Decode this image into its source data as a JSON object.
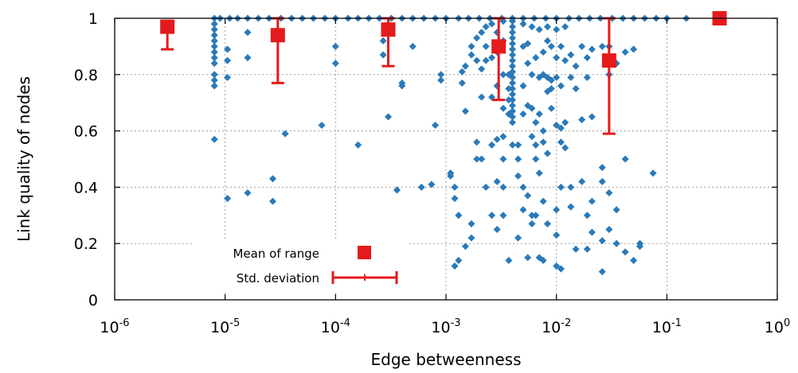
{
  "colors": {
    "scatter": "#2a7ab9",
    "mean": "#e41a1c",
    "grid": "#a0a0a0",
    "axis": "#000000"
  },
  "chart_data": {
    "type": "scatter",
    "title": "",
    "xlabel": "Edge betweenness",
    "ylabel": "Link quality of nodes",
    "xscale": "log",
    "xlim": [
      1e-06,
      1
    ],
    "ylim": [
      0,
      1
    ],
    "x_ticks": [
      {
        "base": "10",
        "exp": "-6",
        "value": 1e-06
      },
      {
        "base": "10",
        "exp": "-5",
        "value": 1e-05
      },
      {
        "base": "10",
        "exp": "-4",
        "value": 0.0001
      },
      {
        "base": "10",
        "exp": "-3",
        "value": 0.001
      },
      {
        "base": "10",
        "exp": "-2",
        "value": 0.01
      },
      {
        "base": "10",
        "exp": "-1",
        "value": 0.1
      },
      {
        "base": "10",
        "exp": "0",
        "value": 1
      }
    ],
    "y_ticks": [
      {
        "label": "0",
        "value": 0
      },
      {
        "label": "0.2",
        "value": 0.2
      },
      {
        "label": "0.4",
        "value": 0.4
      },
      {
        "label": "0.6",
        "value": 0.6
      },
      {
        "label": "0.8",
        "value": 0.8
      },
      {
        "label": "1",
        "value": 1
      }
    ],
    "grid": true,
    "legend_position": "bottom-left",
    "legend": [
      {
        "label": "Mean of range",
        "marker": "square"
      },
      {
        "label": "Std. deviation",
        "marker": "errorbar"
      }
    ],
    "series": [
      {
        "role": "scatter",
        "points": [
          [
            8e-06,
            1
          ],
          [
            9e-06,
            1
          ],
          [
            1.1e-05,
            1
          ],
          [
            1.3e-05,
            1
          ],
          [
            1.6e-05,
            1
          ],
          [
            2e-05,
            1
          ],
          [
            2.5e-05,
            1
          ],
          [
            3.2e-05,
            1
          ],
          [
            4e-05,
            1
          ],
          [
            5e-05,
            1
          ],
          [
            6.3e-05,
            1
          ],
          [
            8e-05,
            1
          ],
          [
            0.0001,
            1
          ],
          [
            0.00013,
            1
          ],
          [
            0.00016,
            1
          ],
          [
            0.0002,
            1
          ],
          [
            0.00025,
            1
          ],
          [
            0.00032,
            1
          ],
          [
            0.0004,
            1
          ],
          [
            0.0005,
            1
          ],
          [
            0.00063,
            1
          ],
          [
            0.0008,
            1
          ],
          [
            0.001,
            1
          ],
          [
            0.0013,
            1
          ],
          [
            0.0016,
            1
          ],
          [
            0.002,
            1
          ],
          [
            0.0025,
            1
          ],
          [
            0.0032,
            1
          ],
          [
            0.004,
            1
          ],
          [
            0.005,
            1
          ],
          [
            0.0063,
            1
          ],
          [
            0.008,
            1
          ],
          [
            0.01,
            1
          ],
          [
            0.013,
            1
          ],
          [
            0.016,
            1
          ],
          [
            0.02,
            1
          ],
          [
            0.025,
            1
          ],
          [
            0.032,
            1
          ],
          [
            0.04,
            1
          ],
          [
            0.05,
            1
          ],
          [
            0.063,
            1
          ],
          [
            0.08,
            1
          ],
          [
            0.1,
            1
          ],
          [
            0.15,
            1
          ],
          [
            8e-06,
            0.98
          ],
          [
            8e-06,
            0.96
          ],
          [
            8e-06,
            0.94
          ],
          [
            8e-06,
            0.92
          ],
          [
            8e-06,
            0.9
          ],
          [
            8e-06,
            0.88
          ],
          [
            8e-06,
            0.86
          ],
          [
            8e-06,
            0.84
          ],
          [
            8e-06,
            0.8
          ],
          [
            8e-06,
            0.78
          ],
          [
            8e-06,
            0.76
          ],
          [
            8e-06,
            0.57
          ],
          [
            1.05e-05,
            0.89
          ],
          [
            1.05e-05,
            0.85
          ],
          [
            1.05e-05,
            0.79
          ],
          [
            1.05e-05,
            0.36
          ],
          [
            1.6e-05,
            0.95
          ],
          [
            1.6e-05,
            0.86
          ],
          [
            1.6e-05,
            0.38
          ],
          [
            2.7e-05,
            0.43
          ],
          [
            2.7e-05,
            0.35
          ],
          [
            3.5e-05,
            0.59
          ],
          [
            4.2e-05,
            0.19
          ],
          [
            7.5e-05,
            0.62
          ],
          [
            0.0001,
            0.9
          ],
          [
            0.0001,
            0.84
          ],
          [
            0.00016,
            0.55
          ],
          [
            0.00027,
            0.92
          ],
          [
            0.00027,
            0.87
          ],
          [
            0.0003,
            0.65
          ],
          [
            0.00036,
            0.39
          ],
          [
            0.0004,
            0.77
          ],
          [
            0.0004,
            0.76
          ],
          [
            0.0005,
            0.9
          ],
          [
            0.0006,
            0.4
          ],
          [
            0.00074,
            0.41
          ],
          [
            0.0008,
            0.62
          ],
          [
            0.0009,
            0.8
          ],
          [
            0.0009,
            0.78
          ],
          [
            0.0011,
            0.45
          ],
          [
            0.0011,
            0.44
          ],
          [
            0.0012,
            0.4
          ],
          [
            0.0012,
            0.36
          ],
          [
            0.0012,
            0.12
          ],
          [
            0.0013,
            0.3
          ],
          [
            0.0013,
            0.14
          ],
          [
            0.0014,
            0.81
          ],
          [
            0.0014,
            0.77
          ],
          [
            0.0015,
            0.83
          ],
          [
            0.0015,
            0.67
          ],
          [
            0.0015,
            0.19
          ],
          [
            0.0017,
            0.9
          ],
          [
            0.0017,
            0.87
          ],
          [
            0.0017,
            0.22
          ],
          [
            0.0017,
            0.27
          ],
          [
            0.0019,
            0.93
          ],
          [
            0.0019,
            0.85
          ],
          [
            0.0019,
            0.5
          ],
          [
            0.0019,
            0.56
          ],
          [
            0.0021,
            0.95
          ],
          [
            0.0021,
            0.82
          ],
          [
            0.0021,
            0.72
          ],
          [
            0.0021,
            0.5
          ],
          [
            0.0023,
            0.97
          ],
          [
            0.0023,
            0.9
          ],
          [
            0.0023,
            0.85
          ],
          [
            0.0023,
            0.4
          ],
          [
            0.0026,
            0.98
          ],
          [
            0.0026,
            0.86
          ],
          [
            0.0026,
            0.72
          ],
          [
            0.0026,
            0.55
          ],
          [
            0.0026,
            0.3
          ],
          [
            0.0029,
            0.95
          ],
          [
            0.0029,
            0.88
          ],
          [
            0.0029,
            0.76
          ],
          [
            0.0029,
            0.57
          ],
          [
            0.0029,
            0.42
          ],
          [
            0.0029,
            0.25
          ],
          [
            0.0033,
            0.99
          ],
          [
            0.0033,
            0.92
          ],
          [
            0.0033,
            0.8
          ],
          [
            0.0033,
            0.68
          ],
          [
            0.0033,
            0.58
          ],
          [
            0.0033,
            0.5
          ],
          [
            0.0033,
            0.4
          ],
          [
            0.0033,
            0.3
          ],
          [
            0.0037,
            0.8
          ],
          [
            0.0037,
            0.75
          ],
          [
            0.0037,
            0.71
          ],
          [
            0.0037,
            0.66
          ],
          [
            0.0037,
            0.14
          ],
          [
            0.004,
            0.99
          ],
          [
            0.004,
            0.97
          ],
          [
            0.004,
            0.95
          ],
          [
            0.004,
            0.93
          ],
          [
            0.004,
            0.91
          ],
          [
            0.004,
            0.89
          ],
          [
            0.004,
            0.87
          ],
          [
            0.004,
            0.85
          ],
          [
            0.004,
            0.83
          ],
          [
            0.004,
            0.81
          ],
          [
            0.004,
            0.79
          ],
          [
            0.004,
            0.77
          ],
          [
            0.004,
            0.75
          ],
          [
            0.004,
            0.73
          ],
          [
            0.004,
            0.71
          ],
          [
            0.004,
            0.69
          ],
          [
            0.004,
            0.67
          ],
          [
            0.004,
            0.65
          ],
          [
            0.004,
            0.63
          ],
          [
            0.004,
            0.55
          ],
          [
            0.0045,
            0.55
          ],
          [
            0.0045,
            0.5
          ],
          [
            0.0045,
            0.44
          ],
          [
            0.0045,
            0.22
          ],
          [
            0.005,
            0.98
          ],
          [
            0.005,
            0.9
          ],
          [
            0.005,
            0.76
          ],
          [
            0.005,
            0.66
          ],
          [
            0.005,
            0.4
          ],
          [
            0.005,
            0.32
          ],
          [
            0.0055,
            0.91
          ],
          [
            0.0055,
            0.84
          ],
          [
            0.0055,
            0.69
          ],
          [
            0.0055,
            0.37
          ],
          [
            0.0055,
            0.15
          ],
          [
            0.006,
            0.97
          ],
          [
            0.006,
            0.8
          ],
          [
            0.006,
            0.68
          ],
          [
            0.006,
            0.58
          ],
          [
            0.006,
            0.3
          ],
          [
            0.006,
            0.27
          ],
          [
            0.0065,
            0.86
          ],
          [
            0.0065,
            0.63
          ],
          [
            0.0065,
            0.55
          ],
          [
            0.0065,
            0.5
          ],
          [
            0.0065,
            0.3
          ],
          [
            0.007,
            0.96
          ],
          [
            0.007,
            0.79
          ],
          [
            0.007,
            0.66
          ],
          [
            0.007,
            0.45
          ],
          [
            0.007,
            0.15
          ],
          [
            0.0076,
            0.88
          ],
          [
            0.0076,
            0.8
          ],
          [
            0.0076,
            0.6
          ],
          [
            0.0076,
            0.56
          ],
          [
            0.0076,
            0.35
          ],
          [
            0.0076,
            0.14
          ],
          [
            0.0083,
            0.97
          ],
          [
            0.0083,
            0.92
          ],
          [
            0.0083,
            0.79
          ],
          [
            0.0083,
            0.74
          ],
          [
            0.0083,
            0.52
          ],
          [
            0.0083,
            0.27
          ],
          [
            0.009,
            0.9
          ],
          [
            0.009,
            0.78
          ],
          [
            0.009,
            0.75
          ],
          [
            0.009,
            0.68
          ],
          [
            0.01,
            0.96
          ],
          [
            0.01,
            0.86
          ],
          [
            0.01,
            0.79
          ],
          [
            0.01,
            0.62
          ],
          [
            0.01,
            0.32
          ],
          [
            0.01,
            0.23
          ],
          [
            0.01,
            0.12
          ],
          [
            0.011,
            0.9
          ],
          [
            0.011,
            0.76
          ],
          [
            0.011,
            0.61
          ],
          [
            0.011,
            0.56
          ],
          [
            0.011,
            0.4
          ],
          [
            0.011,
            0.11
          ],
          [
            0.012,
            0.97
          ],
          [
            0.012,
            0.85
          ],
          [
            0.012,
            0.63
          ],
          [
            0.012,
            0.54
          ],
          [
            0.0135,
            0.87
          ],
          [
            0.0135,
            0.79
          ],
          [
            0.0135,
            0.4
          ],
          [
            0.0135,
            0.33
          ],
          [
            0.015,
            0.83
          ],
          [
            0.015,
            0.75
          ],
          [
            0.015,
            0.18
          ],
          [
            0.017,
            0.9
          ],
          [
            0.017,
            0.64
          ],
          [
            0.017,
            0.42
          ],
          [
            0.019,
            0.86
          ],
          [
            0.019,
            0.79
          ],
          [
            0.019,
            0.3
          ],
          [
            0.019,
            0.18
          ],
          [
            0.021,
            0.89
          ],
          [
            0.021,
            0.65
          ],
          [
            0.021,
            0.35
          ],
          [
            0.021,
            0.24
          ],
          [
            0.026,
            0.9
          ],
          [
            0.026,
            0.47
          ],
          [
            0.026,
            0.42
          ],
          [
            0.026,
            0.21
          ],
          [
            0.026,
            0.1
          ],
          [
            0.03,
            0.9
          ],
          [
            0.03,
            0.8
          ],
          [
            0.03,
            0.38
          ],
          [
            0.03,
            0.25
          ],
          [
            0.035,
            0.84
          ],
          [
            0.035,
            0.32
          ],
          [
            0.035,
            0.2
          ],
          [
            0.042,
            0.88
          ],
          [
            0.042,
            0.5
          ],
          [
            0.042,
            0.17
          ],
          [
            0.05,
            0.89
          ],
          [
            0.05,
            0.14
          ],
          [
            0.057,
            0.19
          ],
          [
            0.057,
            0.2
          ],
          [
            0.075,
            0.45
          ]
        ]
      },
      {
        "role": "mean",
        "points": [
          {
            "x": 3e-06,
            "y": 0.97,
            "sd_low": 0.89,
            "sd_high": 0.99
          },
          {
            "x": 3e-05,
            "y": 0.94,
            "sd_low": 0.77,
            "sd_high": 1.0
          },
          {
            "x": 0.0003,
            "y": 0.96,
            "sd_low": 0.83,
            "sd_high": 1.0
          },
          {
            "x": 0.003,
            "y": 0.9,
            "sd_low": 0.71,
            "sd_high": 1.0
          },
          {
            "x": 0.03,
            "y": 0.85,
            "sd_low": 0.59,
            "sd_high": 1.0
          },
          {
            "x": 0.3,
            "y": 1.0
          }
        ]
      }
    ]
  }
}
